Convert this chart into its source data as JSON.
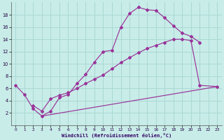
{
  "xlabel": "Windchill (Refroidissement éolien,°C)",
  "bg_color": "#c8ece8",
  "grid_color": "#aad8d4",
  "line_color": "#993399",
  "xlim": [
    -0.5,
    23.5
  ],
  "ylim": [
    0,
    20
  ],
  "xticks": [
    0,
    1,
    2,
    3,
    4,
    5,
    6,
    7,
    8,
    9,
    10,
    11,
    12,
    13,
    14,
    15,
    16,
    17,
    18,
    19,
    20,
    21,
    22,
    23
  ],
  "yticks": [
    2,
    4,
    6,
    8,
    10,
    12,
    14,
    16,
    18
  ],
  "curve1_x": [
    0,
    1,
    2,
    3,
    4,
    5,
    6,
    7,
    8,
    9,
    10,
    11,
    12,
    13,
    14,
    15,
    16,
    17,
    18,
    19,
    20,
    21
  ],
  "curve1_y": [
    6.5,
    5.0,
    2.7,
    1.5,
    2.3,
    4.5,
    5.0,
    6.8,
    8.3,
    10.3,
    12.0,
    12.2,
    16.0,
    18.2,
    19.2,
    18.8,
    18.7,
    17.5,
    16.2,
    15.0,
    14.5,
    13.5
  ],
  "curve2_x": [
    2,
    3,
    4,
    5,
    6,
    7,
    8,
    9,
    10,
    11,
    12,
    13,
    14,
    15,
    16,
    17,
    18,
    19,
    20,
    21,
    23
  ],
  "curve2_y": [
    3.2,
    2.3,
    4.3,
    4.9,
    5.3,
    6.0,
    6.8,
    7.5,
    8.2,
    9.2,
    10.2,
    11.0,
    11.8,
    12.5,
    13.0,
    13.5,
    14.0,
    14.0,
    13.8,
    6.5,
    6.3
  ],
  "curve3_x": [
    3,
    23
  ],
  "curve3_y": [
    1.5,
    6.3
  ]
}
